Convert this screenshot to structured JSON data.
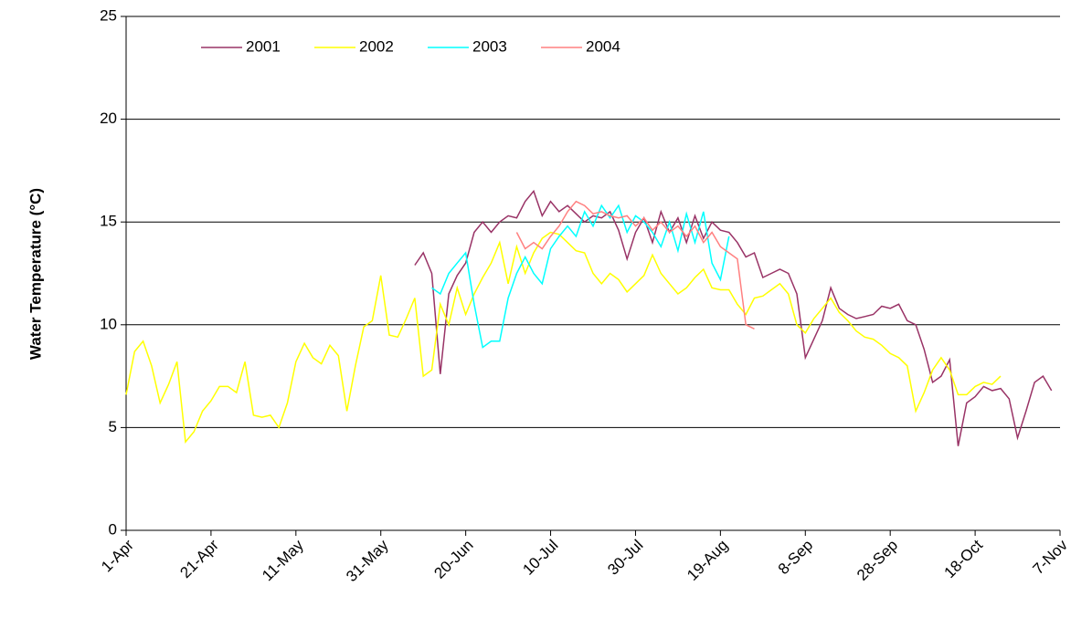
{
  "chart_data": {
    "type": "line",
    "y_label": "Water Temperature (°C)",
    "categories": [
      "1-Apr",
      null,
      null,
      null,
      null,
      null,
      null,
      null,
      null,
      null,
      "21-Apr",
      null,
      null,
      null,
      null,
      null,
      null,
      null,
      null,
      null,
      "11-May",
      null,
      null,
      null,
      null,
      null,
      null,
      null,
      null,
      null,
      "31-May",
      null,
      null,
      null,
      null,
      null,
      null,
      null,
      null,
      null,
      "20-Jun",
      null,
      null,
      null,
      null,
      null,
      null,
      null,
      null,
      null,
      "10-Jul",
      null,
      null,
      null,
      null,
      null,
      null,
      null,
      null,
      null,
      "30-Jul",
      null,
      null,
      null,
      null,
      null,
      null,
      null,
      null,
      null,
      "19-Aug",
      null,
      null,
      null,
      null,
      null,
      null,
      null,
      null,
      null,
      "8-Sep",
      null,
      null,
      null,
      null,
      null,
      null,
      null,
      null,
      null,
      "28-Sep",
      null,
      null,
      null,
      null,
      null,
      null,
      null,
      null,
      null,
      "18-Oct",
      null,
      null,
      null,
      null,
      null,
      null,
      null,
      null,
      null,
      "7-Nov"
    ],
    "series": [
      {
        "name": "2001",
        "color": "#993366",
        "values": [
          null,
          null,
          null,
          null,
          null,
          null,
          null,
          null,
          null,
          null,
          null,
          null,
          null,
          null,
          null,
          null,
          null,
          null,
          null,
          null,
          null,
          null,
          null,
          null,
          null,
          null,
          null,
          null,
          null,
          null,
          null,
          null,
          null,
          null,
          12.9,
          13.5,
          12.5,
          7.6,
          11.5,
          12.4,
          13.0,
          14.5,
          15.0,
          14.5,
          15.0,
          15.3,
          15.2,
          16.0,
          16.5,
          15.3,
          16.0,
          15.5,
          15.8,
          15.4,
          15.0,
          15.3,
          15.2,
          15.5,
          14.6,
          13.2,
          14.5,
          15.2,
          14.0,
          15.5,
          14.5,
          15.2,
          14.0,
          15.3,
          14.2,
          15.0,
          14.6,
          14.5,
          14.0,
          13.3,
          13.5,
          12.3,
          12.5,
          12.7,
          12.5,
          11.5,
          8.4,
          9.3,
          10.2,
          11.8,
          10.8,
          10.5,
          10.3,
          10.4,
          10.5,
          10.9,
          10.8,
          11.0,
          10.2,
          10.0,
          8.8,
          7.2,
          7.5,
          8.3,
          4.1,
          6.2,
          6.5,
          7.0,
          6.8,
          6.9,
          6.4,
          4.5,
          5.8,
          7.2,
          7.5,
          6.8,
          null
        ]
      },
      {
        "name": "2002",
        "color": "#ffff00",
        "values": [
          6.6,
          8.7,
          9.2,
          8.0,
          6.2,
          7.1,
          8.2,
          4.3,
          4.8,
          5.8,
          6.3,
          7.0,
          7.0,
          6.7,
          8.2,
          5.6,
          5.5,
          5.6,
          5.0,
          6.2,
          8.2,
          9.1,
          8.4,
          8.1,
          9.0,
          8.5,
          5.8,
          8.0,
          9.9,
          10.2,
          12.4,
          9.5,
          9.4,
          10.3,
          11.3,
          7.5,
          7.8,
          11.0,
          10.0,
          11.8,
          10.5,
          11.5,
          12.3,
          13.0,
          14.0,
          12.0,
          13.8,
          12.5,
          13.5,
          14.2,
          14.5,
          14.4,
          14.0,
          13.6,
          13.5,
          12.5,
          12.0,
          12.5,
          12.2,
          11.6,
          12.0,
          12.4,
          13.4,
          12.5,
          12.0,
          11.5,
          11.8,
          12.3,
          12.7,
          11.8,
          11.7,
          11.7,
          11.0,
          10.5,
          11.3,
          11.4,
          11.7,
          12.0,
          11.5,
          10.0,
          9.6,
          10.3,
          10.8,
          11.3,
          10.6,
          10.2,
          9.7,
          9.4,
          9.3,
          9.0,
          8.6,
          8.4,
          8.0,
          5.8,
          6.7,
          7.8,
          8.4,
          7.8,
          6.6,
          6.6,
          7.0,
          7.2,
          7.1,
          7.5,
          null,
          null,
          null,
          null,
          null,
          null,
          null
        ]
      },
      {
        "name": "2003",
        "color": "#00ffff",
        "values": [
          null,
          null,
          null,
          null,
          null,
          null,
          null,
          null,
          null,
          null,
          null,
          null,
          null,
          null,
          null,
          null,
          null,
          null,
          null,
          null,
          null,
          null,
          null,
          null,
          null,
          null,
          null,
          null,
          null,
          null,
          null,
          null,
          null,
          null,
          null,
          null,
          11.8,
          11.5,
          12.5,
          13.0,
          13.5,
          11.0,
          8.9,
          9.2,
          9.2,
          11.3,
          12.5,
          13.3,
          12.5,
          12.0,
          13.7,
          14.3,
          14.8,
          14.3,
          15.5,
          14.8,
          15.8,
          15.2,
          15.8,
          14.5,
          15.3,
          15.0,
          14.5,
          13.8,
          15.0,
          13.6,
          15.4,
          14.0,
          15.5,
          13.0,
          12.2,
          14.3,
          null,
          null,
          null,
          null,
          null,
          null,
          null,
          null,
          null,
          null,
          null,
          null,
          null,
          null,
          null,
          null,
          null,
          null,
          null,
          null,
          null,
          null,
          null,
          null,
          null,
          null,
          null,
          null,
          null,
          null,
          null,
          null,
          null,
          null,
          null,
          null,
          null,
          null,
          null
        ]
      },
      {
        "name": "2004",
        "color": "#ff8080",
        "values": [
          null,
          null,
          null,
          null,
          null,
          null,
          null,
          null,
          null,
          null,
          null,
          null,
          null,
          null,
          null,
          null,
          null,
          null,
          null,
          null,
          null,
          null,
          null,
          null,
          null,
          null,
          null,
          null,
          null,
          null,
          null,
          null,
          null,
          null,
          null,
          null,
          null,
          null,
          null,
          null,
          null,
          null,
          null,
          null,
          null,
          null,
          14.5,
          13.7,
          14.0,
          13.7,
          14.3,
          14.8,
          15.5,
          16.0,
          15.8,
          15.4,
          15.5,
          15.3,
          15.2,
          15.3,
          14.8,
          15.2,
          14.6,
          15.0,
          14.5,
          14.8,
          14.3,
          14.8,
          14.0,
          14.5,
          13.8,
          13.5,
          13.2,
          10.0,
          9.8,
          null,
          null,
          null,
          null,
          null,
          null,
          null,
          null,
          null,
          null,
          null,
          null,
          null,
          null,
          null,
          null,
          null,
          null,
          null,
          null,
          null,
          null,
          null,
          null,
          null,
          null,
          null,
          null,
          null,
          null,
          null,
          null,
          null,
          null,
          null,
          null
        ]
      }
    ],
    "ylim": [
      0,
      25
    ],
    "yticks": [
      0,
      5,
      10,
      15,
      20,
      25
    ],
    "grid": true,
    "legend": "upper left"
  }
}
